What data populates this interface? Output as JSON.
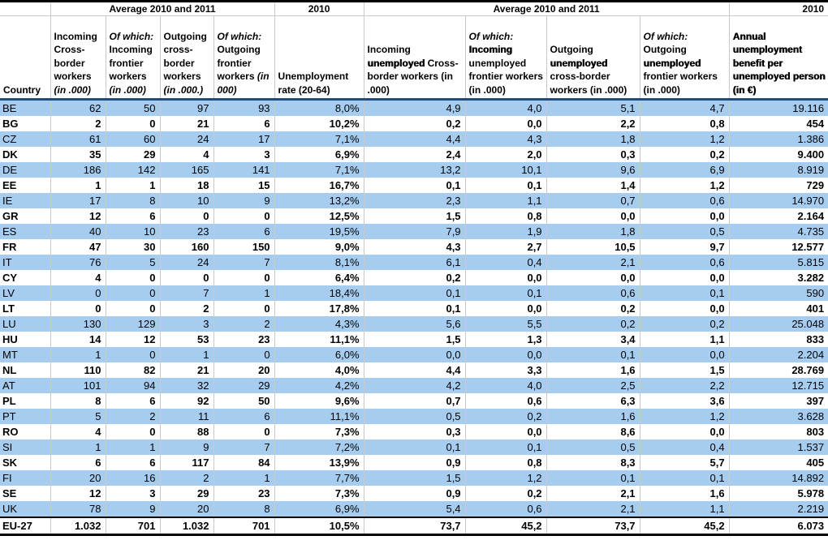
{
  "table": {
    "colors": {
      "row_blue": "#A6CDF0",
      "header_rule_blue": "#1F4E79",
      "grid_gray": "#C9C9C9",
      "border_black": "#000000"
    },
    "top_bands": [
      {
        "label": "",
        "span": 1,
        "align": "left"
      },
      {
        "label": "Average 2010 and 2011",
        "span": 4,
        "align": "center"
      },
      {
        "label": "2010",
        "span": 1,
        "align": "center"
      },
      {
        "label": "Average 2010 and 2011",
        "span": 4,
        "align": "center"
      },
      {
        "label": "2010",
        "span": 1,
        "align": "right"
      }
    ],
    "columns": [
      {
        "name": "country",
        "width": 62,
        "header": [
          {
            "t": "Country"
          }
        ]
      },
      {
        "name": "incoming-cross-border-workers",
        "width": 68,
        "header": [
          {
            "t": "Incoming Cross-border workers "
          },
          {
            "t": "(in .000)",
            "i": 1
          }
        ]
      },
      {
        "name": "incoming-frontier-workers",
        "width": 67,
        "header": [
          {
            "t": "Of which: ",
            "i": 1
          },
          {
            "t": "Incoming frontier workers "
          },
          {
            "t": "(in .000)",
            "i": 1
          }
        ]
      },
      {
        "name": "outgoing-cross-border-workers",
        "width": 66,
        "header": [
          {
            "t": "Outgoing cross-border workers "
          },
          {
            "t": "(in .000.)",
            "i": 1
          }
        ]
      },
      {
        "name": "outgoing-frontier-workers",
        "width": 75,
        "header": [
          {
            "t": "Of which: ",
            "i": 1
          },
          {
            "t": "Outgoing frontier workers "
          },
          {
            "t": "(in 000)",
            "i": 1
          }
        ]
      },
      {
        "name": "unemployment-rate",
        "width": 110,
        "header": [
          {
            "t": "Unemployment rate (20-64)"
          }
        ]
      },
      {
        "name": "incoming-unemployed-cross-border-workers",
        "width": 125,
        "header": [
          {
            "t": "Incoming "
          },
          {
            "t": "unemployed",
            "xb": 1
          },
          {
            "t": " Cross-border workers (in .000)"
          }
        ]
      },
      {
        "name": "incoming-unemployed-frontier-workers",
        "width": 100,
        "header": [
          {
            "t": "Of which:",
            "i": 1
          },
          {
            "br": 1
          },
          {
            "t": "Incoming",
            "xb": 1
          },
          {
            "t": " unemployed frontier workers (in .000)"
          }
        ]
      },
      {
        "name": "outgoing-unemployed-cross-border-workers",
        "width": 115,
        "header": [
          {
            "t": "Outgoing "
          },
          {
            "t": "unemployed",
            "xb": 1
          },
          {
            "t": " cross-border workers (in .000)"
          }
        ]
      },
      {
        "name": "outgoing-unemployed-frontier-workers",
        "width": 110,
        "header": [
          {
            "t": "Of which:",
            "i": 1
          },
          {
            "br": 1
          },
          {
            "t": "Outgoing "
          },
          {
            "t": "unemployed",
            "xb": 1
          },
          {
            "t": " frontier workers (in .000)"
          }
        ]
      },
      {
        "name": "annual-unemployment-benefit",
        "width": 122,
        "header": [
          {
            "t": "Annual unemployment benefit per unemployed person (in €)",
            "xb": 1
          }
        ]
      }
    ],
    "rows": [
      {
        "code": "BE",
        "values": [
          "62",
          "50",
          "97",
          "93",
          "8,0%",
          "4,9",
          "4,0",
          "5,1",
          "4,7",
          "19.116"
        ]
      },
      {
        "code": "BG",
        "values": [
          "2",
          "0",
          "21",
          "6",
          "10,2%",
          "0,2",
          "0,0",
          "2,2",
          "0,8",
          "454"
        ]
      },
      {
        "code": "CZ",
        "values": [
          "61",
          "60",
          "24",
          "17",
          "7,1%",
          "4,4",
          "4,3",
          "1,8",
          "1,2",
          "1.386"
        ]
      },
      {
        "code": "DK",
        "values": [
          "35",
          "29",
          "4",
          "3",
          "6,9%",
          "2,4",
          "2,0",
          "0,3",
          "0,2",
          "9.400"
        ]
      },
      {
        "code": "DE",
        "values": [
          "186",
          "142",
          "165",
          "141",
          "7,1%",
          "13,2",
          "10,1",
          "9,6",
          "6,9",
          "8.919"
        ]
      },
      {
        "code": "EE",
        "values": [
          "1",
          "1",
          "18",
          "15",
          "16,7%",
          "0,1",
          "0,1",
          "1,4",
          "1,2",
          "729"
        ]
      },
      {
        "code": "IE",
        "values": [
          "17",
          "8",
          "10",
          "9",
          "13,2%",
          "2,3",
          "1,1",
          "0,7",
          "0,6",
          "14.970"
        ]
      },
      {
        "code": "GR",
        "values": [
          "12",
          "6",
          "0",
          "0",
          "12,5%",
          "1,5",
          "0,8",
          "0,0",
          "0,0",
          "2.164"
        ]
      },
      {
        "code": "ES",
        "values": [
          "40",
          "10",
          "23",
          "6",
          "19,5%",
          "7,9",
          "1,9",
          "1,8",
          "0,5",
          "4.735"
        ]
      },
      {
        "code": "FR",
        "values": [
          "47",
          "30",
          "160",
          "150",
          "9,0%",
          "4,3",
          "2,7",
          "10,5",
          "9,7",
          "12.577"
        ]
      },
      {
        "code": "IT",
        "values": [
          "76",
          "5",
          "24",
          "7",
          "8,1%",
          "6,1",
          "0,4",
          "2,1",
          "0,6",
          "5.815"
        ]
      },
      {
        "code": "CY",
        "values": [
          "4",
          "0",
          "0",
          "0",
          "6,4%",
          "0,2",
          "0,0",
          "0,0",
          "0,0",
          "3.282"
        ]
      },
      {
        "code": "LV",
        "values": [
          "0",
          "0",
          "7",
          "1",
          "18,4%",
          "0,1",
          "0,1",
          "0,6",
          "0,1",
          "590"
        ]
      },
      {
        "code": "LT",
        "values": [
          "0",
          "0",
          "2",
          "0",
          "17,8%",
          "0,1",
          "0,0",
          "0,2",
          "0,0",
          "401"
        ]
      },
      {
        "code": "LU",
        "values": [
          "130",
          "129",
          "3",
          "2",
          "4,3%",
          "5,6",
          "5,5",
          "0,2",
          "0,2",
          "25.048"
        ]
      },
      {
        "code": "HU",
        "values": [
          "14",
          "12",
          "53",
          "23",
          "11,1%",
          "1,5",
          "1,3",
          "3,4",
          "1,1",
          "833"
        ]
      },
      {
        "code": "MT",
        "values": [
          "1",
          "0",
          "1",
          "0",
          "6,0%",
          "0,0",
          "0,0",
          "0,1",
          "0,0",
          "2.204"
        ]
      },
      {
        "code": "NL",
        "values": [
          "110",
          "82",
          "21",
          "20",
          "4,0%",
          "4,4",
          "3,3",
          "1,6",
          "1,5",
          "28.769"
        ]
      },
      {
        "code": "AT",
        "values": [
          "101",
          "94",
          "32",
          "29",
          "4,2%",
          "4,2",
          "4,0",
          "2,5",
          "2,2",
          "12.715"
        ]
      },
      {
        "code": "PL",
        "values": [
          "8",
          "6",
          "92",
          "50",
          "9,6%",
          "0,7",
          "0,6",
          "6,3",
          "3,6",
          "397"
        ]
      },
      {
        "code": "PT",
        "values": [
          "5",
          "2",
          "11",
          "6",
          "11,1%",
          "0,5",
          "0,2",
          "1,6",
          "1,2",
          "3.628"
        ]
      },
      {
        "code": "RO",
        "values": [
          "4",
          "0",
          "88",
          "0",
          "7,3%",
          "0,3",
          "0,0",
          "8,6",
          "0,0",
          "803"
        ]
      },
      {
        "code": "SI",
        "values": [
          "1",
          "1",
          "9",
          "7",
          "7,2%",
          "0,1",
          "0,1",
          "0,5",
          "0,4",
          "1.537"
        ]
      },
      {
        "code": "SK",
        "values": [
          "6",
          "6",
          "117",
          "84",
          "13,9%",
          "0,9",
          "0,8",
          "8,3",
          "5,7",
          "405"
        ]
      },
      {
        "code": "FI",
        "values": [
          "20",
          "16",
          "2",
          "1",
          "7,7%",
          "1,5",
          "1,2",
          "0,1",
          "0,1",
          "14.892"
        ]
      },
      {
        "code": "SE",
        "values": [
          "12",
          "3",
          "29",
          "23",
          "7,3%",
          "0,9",
          "0,2",
          "2,1",
          "1,6",
          "5.978"
        ]
      },
      {
        "code": "UK",
        "values": [
          "78",
          "9",
          "20",
          "8",
          "6,9%",
          "5,4",
          "0,6",
          "2,1",
          "1,1",
          "2.219"
        ]
      },
      {
        "code": "EU-27",
        "values": [
          "1.032",
          "701",
          "1.032",
          "701",
          "10,5%",
          "73,7",
          "45,2",
          "73,7",
          "45,2",
          "6.073"
        ]
      }
    ]
  }
}
